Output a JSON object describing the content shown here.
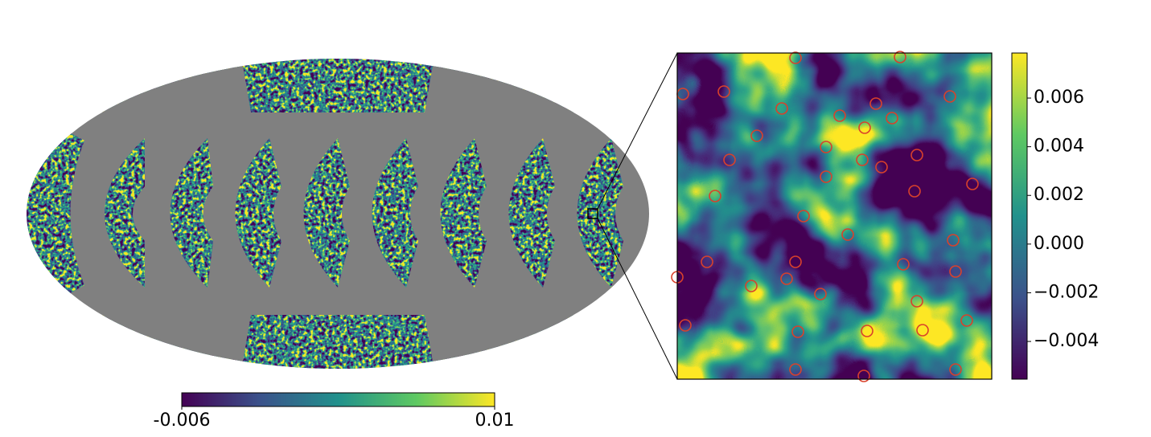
{
  "chart_data": [
    {
      "type": "mollweide",
      "colorbar": {
        "xlim": [
          -0.006,
          0.01
        ],
        "xticks": [
          -0.006,
          0.01
        ]
      }
    },
    {
      "type": "image",
      "colorbar": {
        "ylim": [
          -0.00555,
          0.00785
        ],
        "yticks": [
          0.006,
          0.004,
          0.002,
          {
            "value": 0,
            "label": "0.000"
          },
          {
            "value": -0.002,
            "label": "−0.002"
          },
          {
            "value": -0.004,
            "label": "−0.004"
          }
        ]
      }
    }
  ]
}
